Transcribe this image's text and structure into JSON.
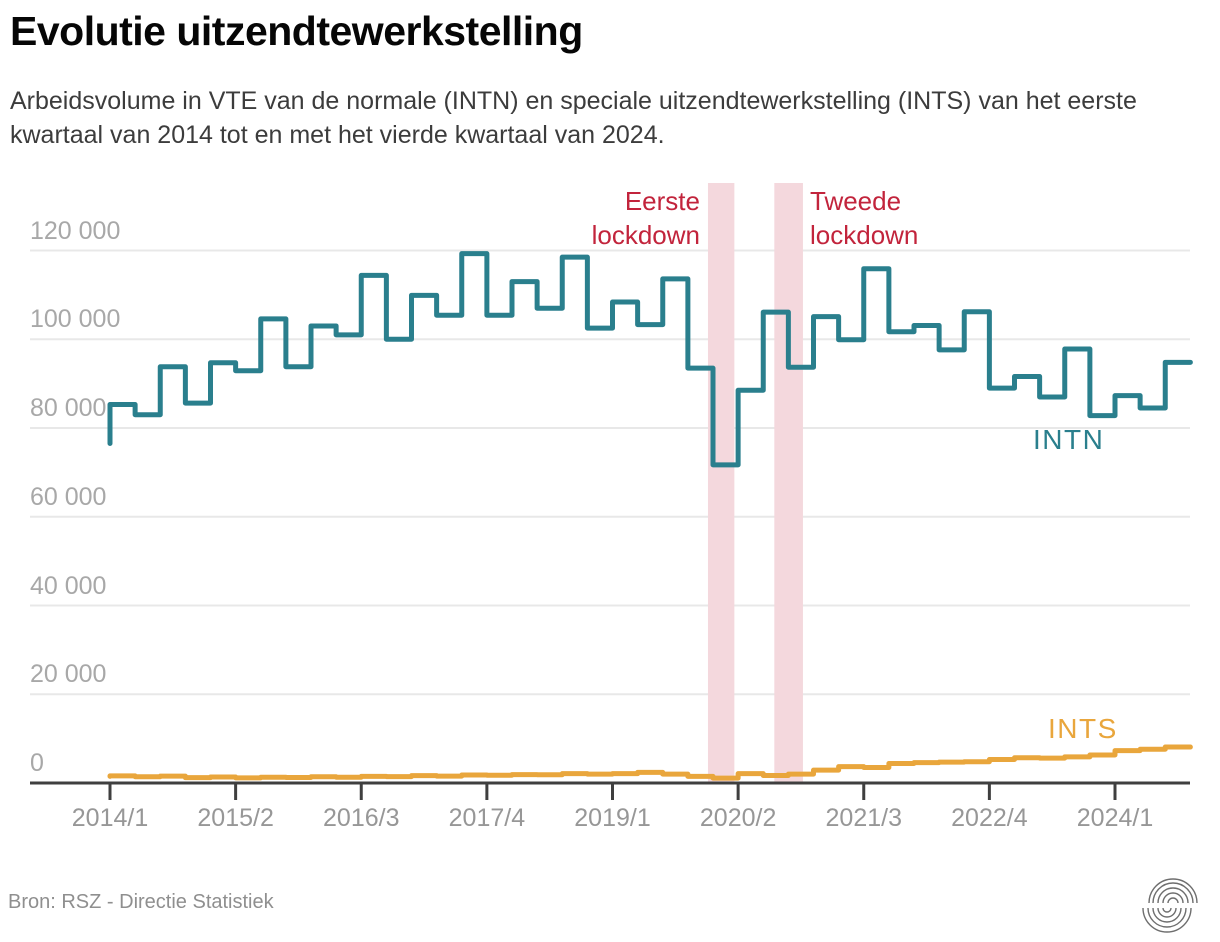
{
  "header": {
    "title": "Evolutie uitzendtewerkstelling",
    "subtitle": "Arbeidsvolume in VTE van de normale (INTN) en speciale uitzendtewerkstelling (INTS) van het eerste kwartaal van 2014 tot en met het vierde kwartaal van 2024."
  },
  "footer": {
    "source": "Bron: RSZ - Directie Statistiek"
  },
  "chart_data": {
    "type": "line",
    "interpolation": "step-before",
    "title": "Evolutie uitzendtewerkstelling",
    "xlabel": "",
    "ylabel": "",
    "grid": true,
    "ylim": [
      0,
      128000
    ],
    "y_ticks": [
      0,
      20000,
      40000,
      60000,
      80000,
      100000,
      120000
    ],
    "y_tick_labels": [
      "0",
      "20 000",
      "40 000",
      "60 000",
      "80 000",
      "100 000",
      "120 000"
    ],
    "x_tick_labels": [
      "2014/1",
      "2015/2",
      "2016/3",
      "2017/4",
      "2019/1",
      "2020/2",
      "2021/3",
      "2022/4",
      "2024/1"
    ],
    "x_tick_quarter_indices": [
      0,
      5,
      10,
      15,
      20,
      25,
      30,
      35,
      40
    ],
    "quarters": [
      "2014/1",
      "2014/2",
      "2014/3",
      "2014/4",
      "2015/1",
      "2015/2",
      "2015/3",
      "2015/4",
      "2016/1",
      "2016/2",
      "2016/3",
      "2016/4",
      "2017/1",
      "2017/2",
      "2017/3",
      "2017/4",
      "2018/1",
      "2018/2",
      "2018/3",
      "2018/4",
      "2019/1",
      "2019/2",
      "2019/3",
      "2019/4",
      "2020/1",
      "2020/2",
      "2020/3",
      "2020/4",
      "2021/1",
      "2021/2",
      "2021/3",
      "2021/4",
      "2022/1",
      "2022/2",
      "2022/3",
      "2022/4",
      "2023/1",
      "2023/2",
      "2023/3",
      "2023/4",
      "2024/1",
      "2024/2",
      "2024/3",
      "2024/4"
    ],
    "series": [
      {
        "name": "INTN",
        "color": "#2a7f8d",
        "values": [
          76500,
          85300,
          83000,
          93800,
          85600,
          94700,
          92900,
          104600,
          93800,
          103000,
          101000,
          114400,
          100000,
          109900,
          105400,
          119300,
          105400,
          113000,
          107000,
          118500,
          102500,
          108400,
          103300,
          113600,
          93500,
          71700,
          88500,
          106100,
          93700,
          105100,
          99900,
          115900,
          101700,
          103100,
          97600,
          106200,
          89000,
          91600,
          87000,
          97800,
          82800,
          87300,
          84500,
          94800
        ]
      },
      {
        "name": "INTS",
        "color": "#e9a63c",
        "values": [
          1500,
          1600,
          1400,
          1550,
          1200,
          1350,
          1150,
          1300,
          1250,
          1400,
          1300,
          1500,
          1450,
          1650,
          1550,
          1800,
          1750,
          1900,
          1850,
          2100,
          2000,
          2100,
          2400,
          2000,
          1500,
          1100,
          2100,
          1700,
          2000,
          2900,
          3700,
          3500,
          4400,
          4600,
          4700,
          4800,
          5300,
          5700,
          5600,
          5900,
          6300,
          7300,
          7600,
          8100
        ]
      }
    ],
    "annotations": {
      "bands": [
        {
          "label_line1": "Eerste",
          "label_line2": "lockdown",
          "start_q": 23.8,
          "end_q": 24.85,
          "color": "#f4d8dd",
          "label_color": "#c2243c"
        },
        {
          "label_line1": "Tweede",
          "label_line2": "lockdown",
          "start_q": 26.44,
          "end_q": 27.58,
          "color": "#f4d8dd",
          "label_color": "#c2243c"
        }
      ]
    },
    "colors": {
      "grid": "#e8e8e8",
      "axis": "#3f3f3f",
      "tick_text": "#979797"
    }
  }
}
